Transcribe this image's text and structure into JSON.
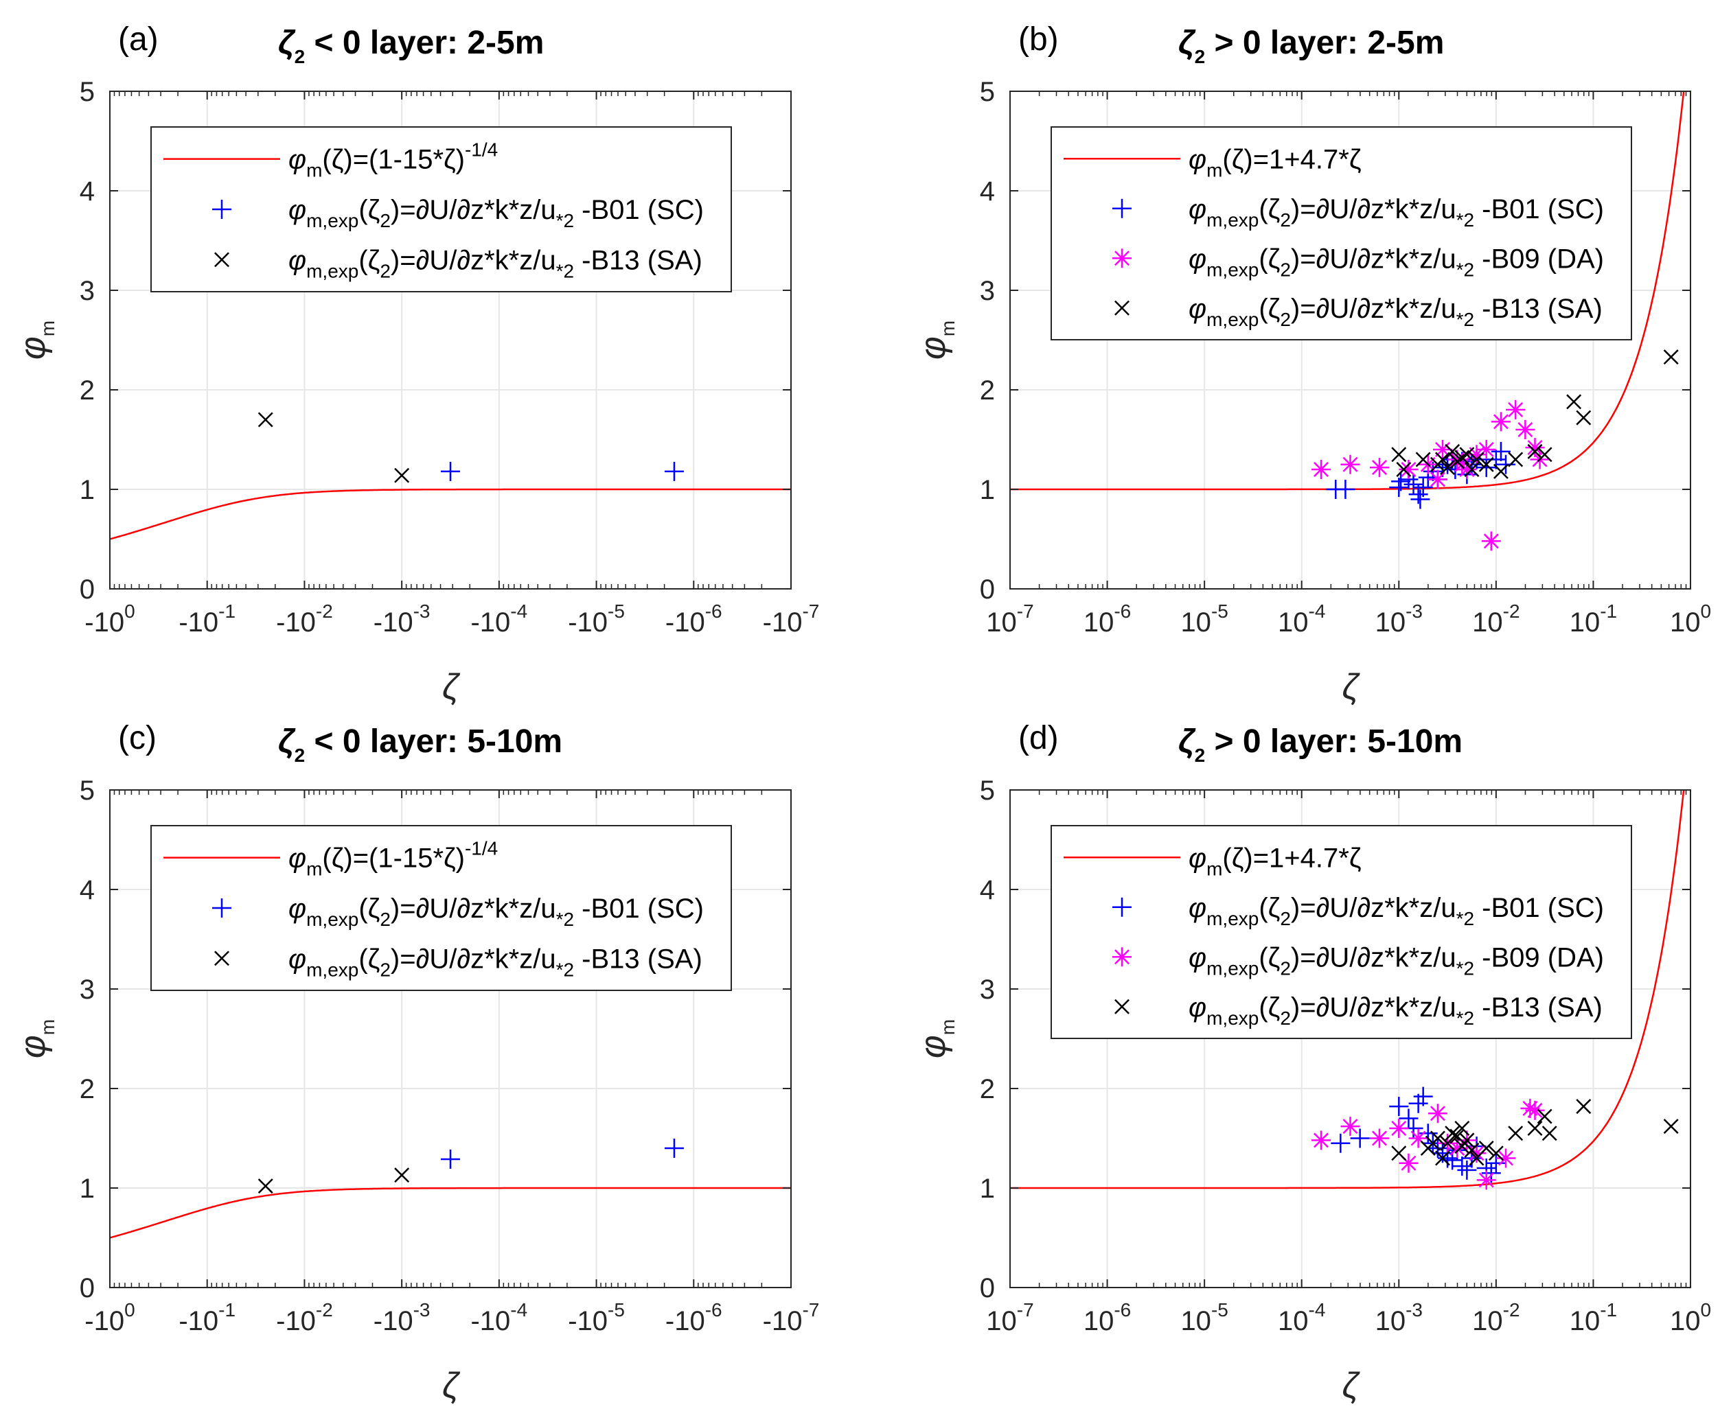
{
  "figure": {
    "colors": {
      "fit_line": "#ff0000",
      "b01": "#0000ff",
      "b09": "#ff00ff",
      "b13": "#000000",
      "axes": "#262626",
      "grid": "#e6e6e6"
    }
  },
  "chart_data": [
    {
      "type": "scatter",
      "panel_letter": "(a)",
      "title_symbol": "ζ",
      "title_subscript": "2",
      "title_rest": " < 0   layer: 2-5m",
      "xlabel": "ζ",
      "ylabel_main": "φ",
      "ylabel_sub": "m",
      "xscale": "neglog",
      "xlim_log10": [
        0,
        -7
      ],
      "ylim": [
        0,
        5
      ],
      "x_ticks": [
        {
          "base": "-10",
          "exp": "0"
        },
        {
          "base": "-10",
          "exp": "-1"
        },
        {
          "base": "-10",
          "exp": "-2"
        },
        {
          "base": "-10",
          "exp": "-3"
        },
        {
          "base": "-10",
          "exp": "-4"
        },
        {
          "base": "-10",
          "exp": "-5"
        },
        {
          "base": "-10",
          "exp": "-6"
        },
        {
          "base": "-10",
          "exp": "-7"
        }
      ],
      "y_ticks": [
        "0",
        "1",
        "2",
        "3",
        "4",
        "5"
      ],
      "legend": [
        {
          "kind": "line",
          "text": "φm(ζ)=(1-15*ζ)-1/4",
          "main": "φ",
          "sub": "m",
          "rest": "(ζ)=(1-15*ζ)",
          "sup": "-1/4"
        },
        {
          "kind": "plus",
          "text": "φm,exp(ζ2)=∂U/∂z*k*z/u*2 -B01 (SC)",
          "main": "φ",
          "sub": "m,exp",
          "rest": "(ζ",
          "rest_sub": "2",
          "rest2": ")=∂U/∂z*k*z/u",
          "rest2_sub": "*2",
          "tail": " -B01 (SC)"
        },
        {
          "kind": "cross",
          "text": "φm,exp(ζ2)=∂U/∂z*k*z/u*2 -B13 (SA)",
          "main": "φ",
          "sub": "m,exp",
          "rest": "(ζ",
          "rest_sub": "2",
          "rest2": ")=∂U/∂z*k*z/u",
          "rest2_sub": "*2",
          "tail": " -B13 (SA)"
        }
      ],
      "fit": {
        "name": "φm(ζ)=(1-15*ζ)^-1/4",
        "formula": "stable_neg"
      },
      "series": [
        {
          "name": "B01 (SC)",
          "marker": "plus",
          "color": "#0000ff",
          "points": [
            [
              -3.5,
              1.18
            ],
            [
              -5.8,
              1.18
            ]
          ]
        },
        {
          "name": "B13 (SA)",
          "marker": "cross",
          "color": "#000000",
          "points": [
            [
              -1.6,
              1.7
            ],
            [
              -3.0,
              1.14
            ]
          ]
        }
      ]
    },
    {
      "type": "scatter",
      "panel_letter": "(b)",
      "title_symbol": "ζ",
      "title_subscript": "2",
      "title_rest": " > 0   layer: 2-5m",
      "xlabel": "ζ",
      "ylabel_main": "φ",
      "ylabel_sub": "m",
      "xscale": "log",
      "xlim_log10": [
        -7,
        0
      ],
      "ylim": [
        0,
        5
      ],
      "x_ticks": [
        {
          "base": "10",
          "exp": "-7"
        },
        {
          "base": "10",
          "exp": "-6"
        },
        {
          "base": "10",
          "exp": "-5"
        },
        {
          "base": "10",
          "exp": "-4"
        },
        {
          "base": "10",
          "exp": "-3"
        },
        {
          "base": "10",
          "exp": "-2"
        },
        {
          "base": "10",
          "exp": "-1"
        },
        {
          "base": "10",
          "exp": "0"
        }
      ],
      "y_ticks": [
        "0",
        "1",
        "2",
        "3",
        "4",
        "5"
      ],
      "legend": [
        {
          "kind": "line",
          "text": "φm(ζ)=1+4.7*ζ",
          "main": "φ",
          "sub": "m",
          "rest": "(ζ)=1+4.7*ζ",
          "sup": ""
        },
        {
          "kind": "plus",
          "text": "φm,exp(ζ2)=∂U/∂z*k*z/u*2 -B01 (SC)",
          "main": "φ",
          "sub": "m,exp",
          "rest": "(ζ",
          "rest_sub": "2",
          "rest2": ")=∂U/∂z*k*z/u",
          "rest2_sub": "*2",
          "tail": " -B01 (SC)"
        },
        {
          "kind": "star",
          "text": "φm,exp(ζ2)=∂U/∂z*k*z/u*2 -B09 (DA)",
          "main": "φ",
          "sub": "m,exp",
          "rest": "(ζ",
          "rest_sub": "2",
          "rest2": ")=∂U/∂z*k*z/u",
          "rest2_sub": "*2",
          "tail": " -B09 (DA)"
        },
        {
          "kind": "cross",
          "text": "φm,exp(ζ2)=∂U/∂z*k*z/u*2 -B13 (SA)",
          "main": "φ",
          "sub": "m,exp",
          "rest": "(ζ",
          "rest_sub": "2",
          "rest2": ")=∂U/∂z*k*z/u",
          "rest2_sub": "*2",
          "tail": " -B13 (SA)"
        }
      ],
      "fit": {
        "name": "φm(ζ)=1+4.7*ζ",
        "formula": "stable_pos"
      },
      "series": [
        {
          "name": "B01 (SC)",
          "marker": "plus",
          "color": "#0000ff",
          "points": [
            [
              -3.65,
              1.0
            ],
            [
              -3.55,
              1.0
            ],
            [
              -3.0,
              1.02
            ],
            [
              -2.98,
              1.08
            ],
            [
              -2.9,
              1.1
            ],
            [
              -2.85,
              1.05
            ],
            [
              -2.8,
              0.95
            ],
            [
              -2.78,
              0.9
            ],
            [
              -2.75,
              1.02
            ],
            [
              -2.7,
              1.12
            ],
            [
              -2.65,
              1.18
            ],
            [
              -2.6,
              1.1
            ],
            [
              -2.55,
              1.22
            ],
            [
              -2.5,
              1.25
            ],
            [
              -2.45,
              1.3
            ],
            [
              -2.42,
              1.2
            ],
            [
              -2.35,
              1.28
            ],
            [
              -2.3,
              1.15
            ],
            [
              -2.25,
              1.25
            ],
            [
              -2.2,
              1.3
            ],
            [
              -2.1,
              1.22
            ],
            [
              -2.0,
              1.3
            ],
            [
              -1.95,
              1.38
            ],
            [
              -1.9,
              1.25
            ]
          ]
        },
        {
          "name": "B09 (DA)",
          "marker": "star",
          "color": "#ff00ff",
          "points": [
            [
              -3.8,
              1.2
            ],
            [
              -3.5,
              1.25
            ],
            [
              -3.2,
              1.22
            ],
            [
              -2.9,
              1.2
            ],
            [
              -2.7,
              1.25
            ],
            [
              -2.55,
              1.4
            ],
            [
              -2.4,
              1.3
            ],
            [
              -2.3,
              1.2
            ],
            [
              -2.2,
              1.35
            ],
            [
              -2.1,
              1.4
            ],
            [
              -2.05,
              0.48
            ],
            [
              -1.95,
              1.68
            ],
            [
              -1.8,
              1.8
            ],
            [
              -1.7,
              1.6
            ],
            [
              -1.6,
              1.42
            ],
            [
              -1.55,
              1.3
            ],
            [
              -2.6,
              1.1
            ],
            [
              -2.35,
              1.25
            ]
          ]
        },
        {
          "name": "B13 (SA)",
          "marker": "cross",
          "color": "#000000",
          "points": [
            [
              -3.0,
              1.35
            ],
            [
              -2.95,
              1.2
            ],
            [
              -2.75,
              1.3
            ],
            [
              -2.6,
              1.25
            ],
            [
              -2.55,
              1.3
            ],
            [
              -2.5,
              1.22
            ],
            [
              -2.45,
              1.38
            ],
            [
              -2.4,
              1.28
            ],
            [
              -2.35,
              1.32
            ],
            [
              -2.3,
              1.35
            ],
            [
              -2.25,
              1.2
            ],
            [
              -2.2,
              1.3
            ],
            [
              -2.1,
              1.25
            ],
            [
              -1.95,
              1.18
            ],
            [
              -1.8,
              1.3
            ],
            [
              -1.6,
              1.38
            ],
            [
              -1.5,
              1.35
            ],
            [
              -1.2,
              1.88
            ],
            [
              -1.1,
              1.72
            ],
            [
              -0.2,
              2.33
            ]
          ]
        }
      ]
    },
    {
      "type": "scatter",
      "panel_letter": "(c)",
      "title_symbol": "ζ",
      "title_subscript": "2",
      "title_rest": " < 0   layer: 5-10m",
      "xlabel": "ζ",
      "ylabel_main": "φ",
      "ylabel_sub": "m",
      "xscale": "neglog",
      "xlim_log10": [
        0,
        -7
      ],
      "ylim": [
        0,
        5
      ],
      "x_ticks": [
        {
          "base": "-10",
          "exp": "0"
        },
        {
          "base": "-10",
          "exp": "-1"
        },
        {
          "base": "-10",
          "exp": "-2"
        },
        {
          "base": "-10",
          "exp": "-3"
        },
        {
          "base": "-10",
          "exp": "-4"
        },
        {
          "base": "-10",
          "exp": "-5"
        },
        {
          "base": "-10",
          "exp": "-6"
        },
        {
          "base": "-10",
          "exp": "-7"
        }
      ],
      "y_ticks": [
        "0",
        "1",
        "2",
        "3",
        "4",
        "5"
      ],
      "legend": [
        {
          "kind": "line",
          "text": "φm(ζ)=(1-15*ζ)-1/4",
          "main": "φ",
          "sub": "m",
          "rest": "(ζ)=(1-15*ζ)",
          "sup": "-1/4"
        },
        {
          "kind": "plus",
          "text": "φm,exp(ζ2)=∂U/∂z*k*z/u*2 -B01 (SC)",
          "main": "φ",
          "sub": "m,exp",
          "rest": "(ζ",
          "rest_sub": "2",
          "rest2": ")=∂U/∂z*k*z/u",
          "rest2_sub": "*2",
          "tail": " -B01 (SC)"
        },
        {
          "kind": "cross",
          "text": "φm,exp(ζ2)=∂U/∂z*k*z/u*2 -B13 (SA)",
          "main": "φ",
          "sub": "m,exp",
          "rest": "(ζ",
          "rest_sub": "2",
          "rest2": ")=∂U/∂z*k*z/u",
          "rest2_sub": "*2",
          "tail": " -B13 (SA)"
        }
      ],
      "fit": {
        "name": "φm(ζ)=(1-15*ζ)^-1/4",
        "formula": "stable_neg"
      },
      "series": [
        {
          "name": "B01 (SC)",
          "marker": "plus",
          "color": "#0000ff",
          "points": [
            [
              -3.5,
              1.29
            ],
            [
              -5.8,
              1.4
            ]
          ]
        },
        {
          "name": "B13 (SA)",
          "marker": "cross",
          "color": "#000000",
          "points": [
            [
              -1.6,
              1.02
            ],
            [
              -3.0,
              1.13
            ]
          ]
        }
      ]
    },
    {
      "type": "scatter",
      "panel_letter": "(d)",
      "title_symbol": "ζ",
      "title_subscript": "2",
      "title_rest": " > 0   layer: 5-10m",
      "xlabel": "ζ",
      "ylabel_main": "φ",
      "ylabel_sub": "m",
      "xscale": "log",
      "xlim_log10": [
        -7,
        0
      ],
      "ylim": [
        0,
        5
      ],
      "x_ticks": [
        {
          "base": "10",
          "exp": "-7"
        },
        {
          "base": "10",
          "exp": "-6"
        },
        {
          "base": "10",
          "exp": "-5"
        },
        {
          "base": "10",
          "exp": "-4"
        },
        {
          "base": "10",
          "exp": "-3"
        },
        {
          "base": "10",
          "exp": "-2"
        },
        {
          "base": "10",
          "exp": "-1"
        },
        {
          "base": "10",
          "exp": "0"
        }
      ],
      "y_ticks": [
        "0",
        "1",
        "2",
        "3",
        "4",
        "5"
      ],
      "legend": [
        {
          "kind": "line",
          "text": "φm(ζ)=1+4.7*ζ",
          "main": "φ",
          "sub": "m",
          "rest": "(ζ)=1+4.7*ζ",
          "sup": ""
        },
        {
          "kind": "plus",
          "text": "φm,exp(ζ2)=∂U/∂z*k*z/u*2 -B01 (SC)",
          "main": "φ",
          "sub": "m,exp",
          "rest": "(ζ",
          "rest_sub": "2",
          "rest2": ")=∂U/∂z*k*z/u",
          "rest2_sub": "*2",
          "tail": " -B01 (SC)"
        },
        {
          "kind": "star",
          "text": "φm,exp(ζ2)=∂U/∂z*k*z/u*2 -B09 (DA)",
          "main": "φ",
          "sub": "m,exp",
          "rest": "(ζ",
          "rest_sub": "2",
          "rest2": ")=∂U/∂z*k*z/u",
          "rest2_sub": "*2",
          "tail": " -B09 (DA)"
        },
        {
          "kind": "cross",
          "text": "φm,exp(ζ2)=∂U/∂z*k*z/u*2 -B13 (SA)",
          "main": "φ",
          "sub": "m,exp",
          "rest": "(ζ",
          "rest_sub": "2",
          "rest2": ")=∂U/∂z*k*z/u",
          "rest2_sub": "*2",
          "tail": " -B13 (SA)"
        }
      ],
      "fit": {
        "name": "φm(ζ)=1+4.7*ζ",
        "formula": "stable_pos"
      },
      "series": [
        {
          "name": "B01 (SC)",
          "marker": "plus",
          "color": "#0000ff",
          "points": [
            [
              -3.6,
              1.45
            ],
            [
              -3.4,
              1.5
            ],
            [
              -3.0,
              1.82
            ],
            [
              -2.9,
              1.7
            ],
            [
              -2.85,
              1.6
            ],
            [
              -2.8,
              1.85
            ],
            [
              -2.75,
              1.92
            ],
            [
              -2.7,
              1.55
            ],
            [
              -2.65,
              1.45
            ],
            [
              -2.6,
              1.4
            ],
            [
              -2.55,
              1.35
            ],
            [
              -2.5,
              1.3
            ],
            [
              -2.45,
              1.28
            ],
            [
              -2.4,
              1.38
            ],
            [
              -2.35,
              1.22
            ],
            [
              -2.3,
              1.18
            ],
            [
              -2.25,
              1.3
            ],
            [
              -2.2,
              1.42
            ],
            [
              -2.1,
              1.2
            ],
            [
              -2.05,
              1.15
            ],
            [
              -2.0,
              1.25
            ]
          ]
        },
        {
          "name": "B09 (DA)",
          "marker": "star",
          "color": "#ff00ff",
          "points": [
            [
              -3.8,
              1.48
            ],
            [
              -3.5,
              1.62
            ],
            [
              -3.2,
              1.5
            ],
            [
              -3.0,
              1.6
            ],
            [
              -2.9,
              1.25
            ],
            [
              -2.8,
              1.5
            ],
            [
              -2.6,
              1.75
            ],
            [
              -2.5,
              1.45
            ],
            [
              -2.3,
              1.48
            ],
            [
              -2.2,
              1.35
            ],
            [
              -2.1,
              1.08
            ],
            [
              -1.9,
              1.3
            ],
            [
              -1.65,
              1.8
            ],
            [
              -1.6,
              1.78
            ],
            [
              -2.4,
              1.4
            ]
          ]
        },
        {
          "name": "B13 (SA)",
          "marker": "cross",
          "color": "#000000",
          "points": [
            [
              -3.0,
              1.35
            ],
            [
              -2.7,
              1.4
            ],
            [
              -2.6,
              1.5
            ],
            [
              -2.55,
              1.3
            ],
            [
              -2.5,
              1.45
            ],
            [
              -2.45,
              1.55
            ],
            [
              -2.4,
              1.52
            ],
            [
              -2.35,
              1.42
            ],
            [
              -2.3,
              1.48
            ],
            [
              -2.25,
              1.38
            ],
            [
              -2.2,
              1.3
            ],
            [
              -2.1,
              1.4
            ],
            [
              -2.0,
              1.35
            ],
            [
              -1.8,
              1.55
            ],
            [
              -1.6,
              1.6
            ],
            [
              -1.5,
              1.72
            ],
            [
              -1.45,
              1.55
            ],
            [
              -1.1,
              1.82
            ],
            [
              -0.2,
              1.62
            ],
            [
              -2.65,
              1.45
            ],
            [
              -2.35,
              1.6
            ]
          ]
        }
      ]
    }
  ]
}
